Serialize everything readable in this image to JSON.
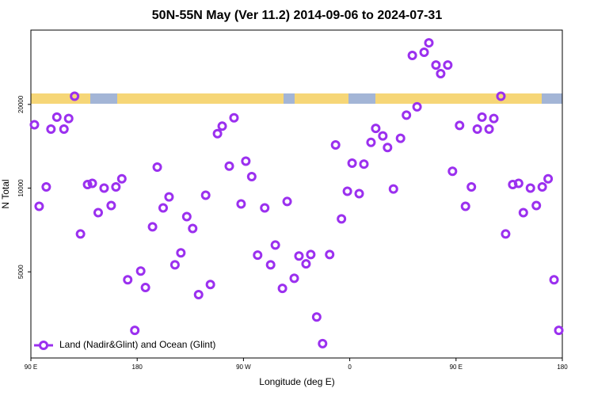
{
  "chart_data": {
    "type": "scatter",
    "title": "50N-55N May (Ver 11.2)   2014-09-06 to 2024-07-31",
    "x_label": "Longitude (deg E)",
    "y_label": "N Total",
    "xlim": [
      90,
      540
    ],
    "xticks": [
      {
        "value": 90,
        "label": "90 E"
      },
      180,
      {
        "value": 270,
        "label": "90 W"
      },
      {
        "value": 360,
        "label": "0"
      },
      {
        "value": 450,
        "label": "90 E"
      },
      {
        "value": 540,
        "label": "180"
      }
    ],
    "ylim": [
      2450,
      37000
    ],
    "yticks": [
      5000,
      10000,
      20000
    ],
    "y_scale": "log",
    "legend_position": "lower left",
    "series": [
      {
        "name": "Land (Nadir&Glint) and Ocean (Glint)",
        "color": "#9b30ef",
        "x": [
          93,
          97,
          103,
          107,
          112,
          118,
          122,
          127,
          132,
          138,
          142,
          147,
          152,
          158,
          162,
          167,
          172,
          178,
          183,
          187,
          193,
          197,
          202,
          207,
          212,
          217,
          222,
          227,
          232,
          238,
          242,
          248,
          252,
          258,
          262,
          268,
          272,
          277,
          282,
          288,
          293,
          297,
          303,
          307,
          313,
          317,
          323,
          327,
          332,
          337,
          343,
          348,
          353,
          358,
          362,
          368,
          372,
          378,
          382,
          388,
          392,
          397,
          403,
          408,
          413,
          417,
          423,
          427,
          433,
          437,
          443,
          447,
          453,
          458,
          463,
          468,
          472,
          478,
          482,
          488,
          492,
          498,
          503,
          507,
          513,
          518,
          523,
          528,
          533,
          537
        ],
        "values": [
          16900,
          8600,
          10100,
          16300,
          18000,
          16300,
          17800,
          21400,
          6840,
          10300,
          10400,
          8160,
          10000,
          8660,
          10100,
          10800,
          4680,
          3080,
          5030,
          4390,
          7260,
          11900,
          8490,
          9300,
          5300,
          5850,
          7900,
          7160,
          4140,
          9430,
          4500,
          15700,
          16700,
          12000,
          17900,
          8770,
          12500,
          11000,
          5740,
          8490,
          5300,
          6240,
          4360,
          8950,
          4740,
          5700,
          5340,
          5770,
          3440,
          2760,
          5770,
          14300,
          7750,
          9740,
          12300,
          9550,
          12200,
          14600,
          16400,
          15400,
          14000,
          9930,
          15100,
          18300,
          30000,
          19600,
          30800,
          33300,
          27700,
          25800,
          27700,
          11500,
          16800,
          8600,
          10100,
          16300,
          18000,
          16300,
          17800,
          21400,
          6840,
          10300,
          10400,
          8160,
          10000,
          8660,
          10100,
          10800,
          4680,
          3080
        ]
      }
    ]
  }
}
